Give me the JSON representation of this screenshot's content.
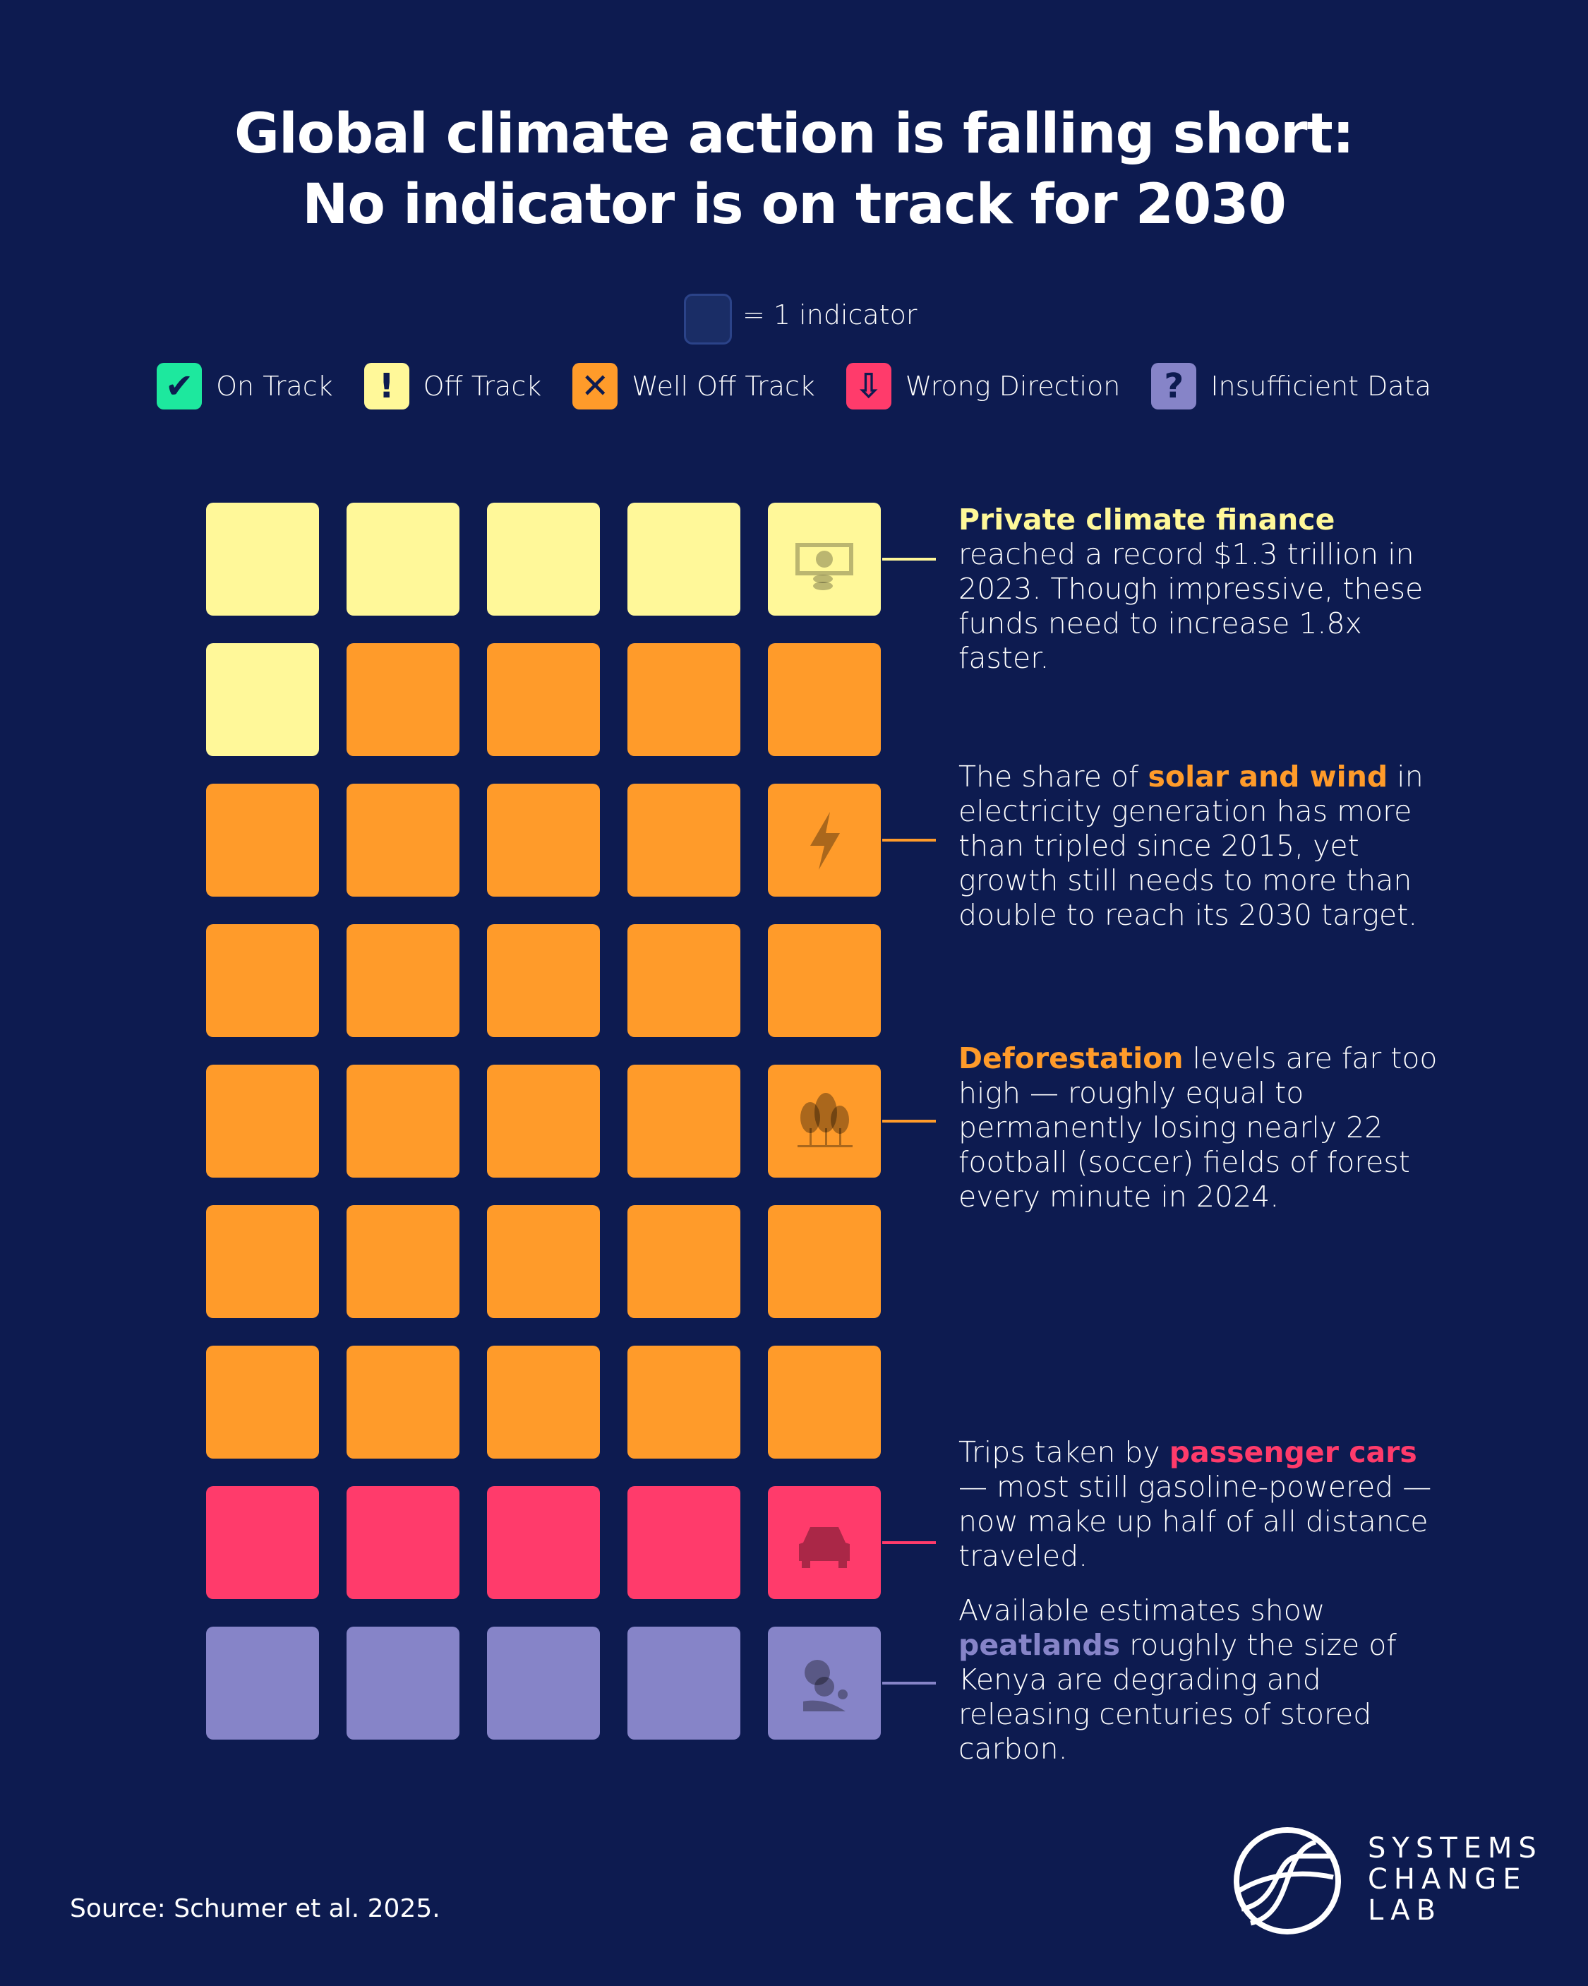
{
  "title": {
    "line1": "Global climate action is falling short:",
    "line2": "No indicator is on track for 2030"
  },
  "unit_legend": {
    "label": "= 1 indicator"
  },
  "legend": [
    {
      "label": "On Track",
      "color": "#1de89e",
      "icon": "check-icon",
      "glyph": "✔"
    },
    {
      "label": "Off Track",
      "color": "#fff899",
      "icon": "exclamation-icon",
      "glyph": "!"
    },
    {
      "label": "Well Off Track",
      "color": "#ff9b2a",
      "icon": "x-icon",
      "glyph": "✕"
    },
    {
      "label": "Wrong Direction",
      "color": "#ff3b6b",
      "icon": "down-arrow-icon",
      "glyph": "⇩"
    },
    {
      "label": "Insufficient Data",
      "color": "#8684c8",
      "icon": "question-icon",
      "glyph": "?"
    }
  ],
  "colors": {
    "background": "#0d1b50",
    "off_track": "#fff899",
    "well_off_track": "#ff9b2a",
    "wrong_direction": "#ff3b6b",
    "insufficient_data": "#8684c8"
  },
  "grid": [
    [
      "Off Track",
      "Off Track",
      "Off Track",
      "Off Track",
      "Off Track"
    ],
    [
      "Off Track",
      "Well Off Track",
      "Well Off Track",
      "Well Off Track",
      "Well Off Track"
    ],
    [
      "Well Off Track",
      "Well Off Track",
      "Well Off Track",
      "Well Off Track",
      "Well Off Track"
    ],
    [
      "Well Off Track",
      "Well Off Track",
      "Well Off Track",
      "Well Off Track",
      "Well Off Track"
    ],
    [
      "Well Off Track",
      "Well Off Track",
      "Well Off Track",
      "Well Off Track",
      "Well Off Track"
    ],
    [
      "Well Off Track",
      "Well Off Track",
      "Well Off Track",
      "Well Off Track",
      "Well Off Track"
    ],
    [
      "Well Off Track",
      "Well Off Track",
      "Well Off Track",
      "Well Off Track",
      "Well Off Track"
    ],
    [
      "Wrong Direction",
      "Wrong Direction",
      "Wrong Direction",
      "Wrong Direction",
      "Wrong Direction"
    ],
    [
      "Insufficient Data",
      "Insufficient Data",
      "Insufficient Data",
      "Insufficient Data",
      "Insufficient Data"
    ]
  ],
  "notes": [
    {
      "row": 0,
      "icon": "money-icon",
      "color": "#fff899",
      "before": "",
      "highlight": "Private climate finance",
      "after": " reached a record $1.3 trillion in 2023. Though impressive, these funds need to increase 1.8x faster."
    },
    {
      "row": 2,
      "icon": "lightning-icon",
      "color": "#ff9b2a",
      "before": "The share of ",
      "highlight": "solar and wind",
      "after": " in electricity generation has more than tripled since 2015, yet growth still needs to more than double to reach its 2030 target."
    },
    {
      "row": 4,
      "icon": "trees-icon",
      "color": "#ff9b2a",
      "before": "",
      "highlight": "Deforestation",
      "after": " levels are far too high — roughly equal to permanently losing nearly 22 football (soccer) fields of forest every minute in 2024."
    },
    {
      "row": 7,
      "icon": "car-icon",
      "color": "#ff3b6b",
      "before": "Trips taken by ",
      "highlight": "passenger cars",
      "after": " — most still gasoline-powered — now make up half of all distance traveled."
    },
    {
      "row": 8,
      "icon": "peatland-icon",
      "color": "#8684c8",
      "before": "Available estimates show ",
      "highlight": "peatlands",
      "after": " roughly the size of Kenya are degrading and releasing centuries of stored carbon."
    }
  ],
  "source": "Source: Schumer et al. 2025.",
  "logo": {
    "line1": "SYSTEMS",
    "line2": "CHANGE",
    "line3": "LAB"
  }
}
